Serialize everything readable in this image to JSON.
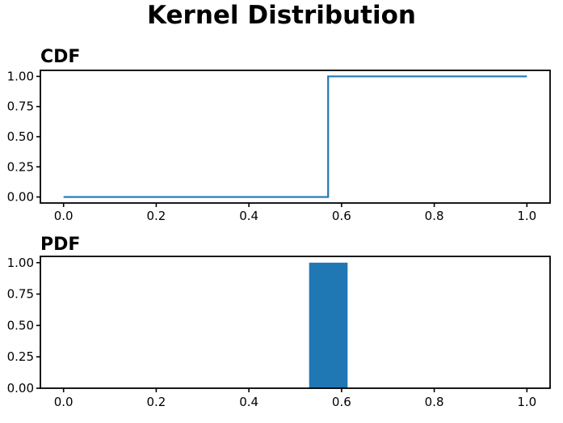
{
  "figure": {
    "title": "Kernel Distribution",
    "background": "#ffffff"
  },
  "colors": {
    "series": "#1f77b4",
    "axis": "#000000",
    "tick_text": "#000000"
  },
  "chart_data": [
    {
      "type": "line",
      "title": "CDF",
      "x": [
        0.0,
        0.571,
        0.571,
        1.0
      ],
      "y": [
        0.0,
        0.0,
        1.0,
        1.0
      ],
      "xlim": [
        -0.05,
        1.05
      ],
      "ylim": [
        -0.05,
        1.05
      ],
      "xticks": [
        {
          "value": 0.0,
          "label": "0.0"
        },
        {
          "value": 0.2,
          "label": "0.2"
        },
        {
          "value": 0.4,
          "label": "0.4"
        },
        {
          "value": 0.6,
          "label": "0.6"
        },
        {
          "value": 0.8,
          "label": "0.8"
        },
        {
          "value": 1.0,
          "label": "1.0"
        }
      ],
      "yticks": [
        {
          "value": 0.0,
          "label": "0.00"
        },
        {
          "value": 0.25,
          "label": "0.25"
        },
        {
          "value": 0.5,
          "label": "0.50"
        },
        {
          "value": 0.75,
          "label": "0.75"
        },
        {
          "value": 1.0,
          "label": "1.00"
        }
      ],
      "line_color": "#1f77b4",
      "line_width": 2.2,
      "grid": false,
      "legend": "none"
    },
    {
      "type": "bar",
      "title": "PDF",
      "bars": [
        {
          "x_start": 0.53,
          "x_end": 0.613,
          "height": 1.0
        }
      ],
      "xlim": [
        -0.05,
        1.05
      ],
      "ylim": [
        0,
        1.05
      ],
      "xticks": [
        {
          "value": 0.0,
          "label": "0.0"
        },
        {
          "value": 0.2,
          "label": "0.2"
        },
        {
          "value": 0.4,
          "label": "0.4"
        },
        {
          "value": 0.6,
          "label": "0.6"
        },
        {
          "value": 0.8,
          "label": "0.8"
        },
        {
          "value": 1.0,
          "label": "1.0"
        }
      ],
      "yticks": [
        {
          "value": 0.0,
          "label": "0.00"
        },
        {
          "value": 0.25,
          "label": "0.25"
        },
        {
          "value": 0.5,
          "label": "0.50"
        },
        {
          "value": 0.75,
          "label": "0.75"
        },
        {
          "value": 1.0,
          "label": "1.00"
        }
      ],
      "bar_color": "#1f77b4",
      "grid": false,
      "legend": "none"
    }
  ]
}
